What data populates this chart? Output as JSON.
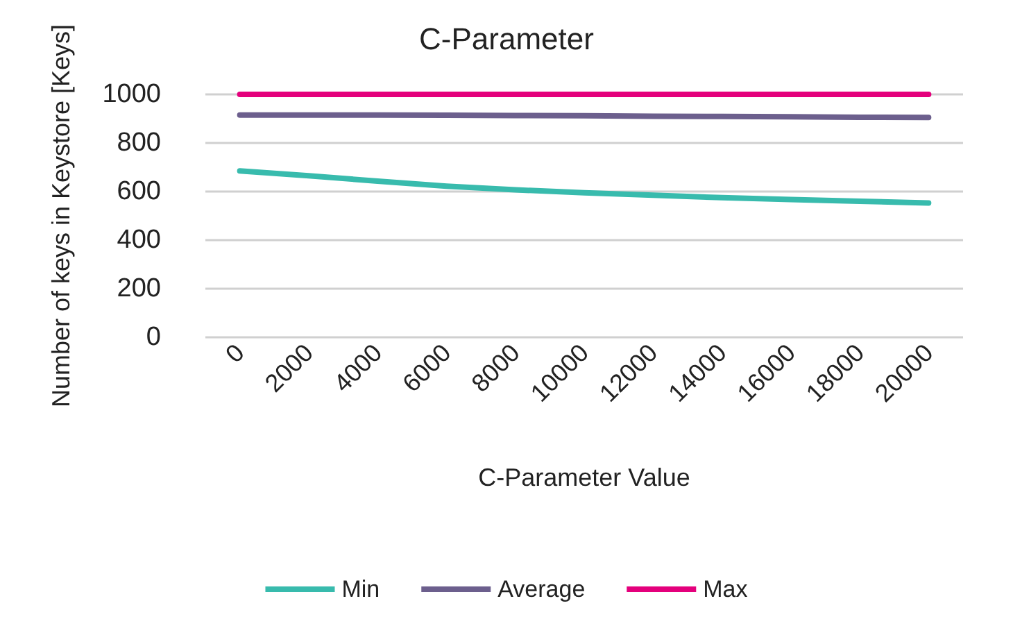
{
  "chart_data": {
    "type": "line",
    "title": "C-Parameter",
    "xlabel": "C-Parameter Value",
    "ylabel": "Number of keys in Keystore [Keys]",
    "categories": [
      "0",
      "2000",
      "4000",
      "6000",
      "8000",
      "10000",
      "12000",
      "14000",
      "16000",
      "18000",
      "20000"
    ],
    "series": [
      {
        "name": "Min",
        "color": "#38bbad",
        "values": [
          685,
          665,
          643,
          622,
          607,
          595,
          585,
          575,
          567,
          560,
          553
        ]
      },
      {
        "name": "Average",
        "color": "#6c5f8d",
        "values": [
          915,
          915,
          915,
          914,
          913,
          912,
          910,
          909,
          908,
          906,
          905
        ]
      },
      {
        "name": "Max",
        "color": "#e4007c",
        "values": [
          1000,
          1000,
          1000,
          1000,
          1000,
          1000,
          1000,
          1000,
          1000,
          1000,
          1000
        ]
      }
    ],
    "ylim": [
      0,
      1000
    ],
    "yticks": [
      0,
      200,
      400,
      600,
      800,
      1000
    ],
    "grid": "y",
    "legend": "bottom",
    "marker": "none",
    "line_style": "solid"
  }
}
